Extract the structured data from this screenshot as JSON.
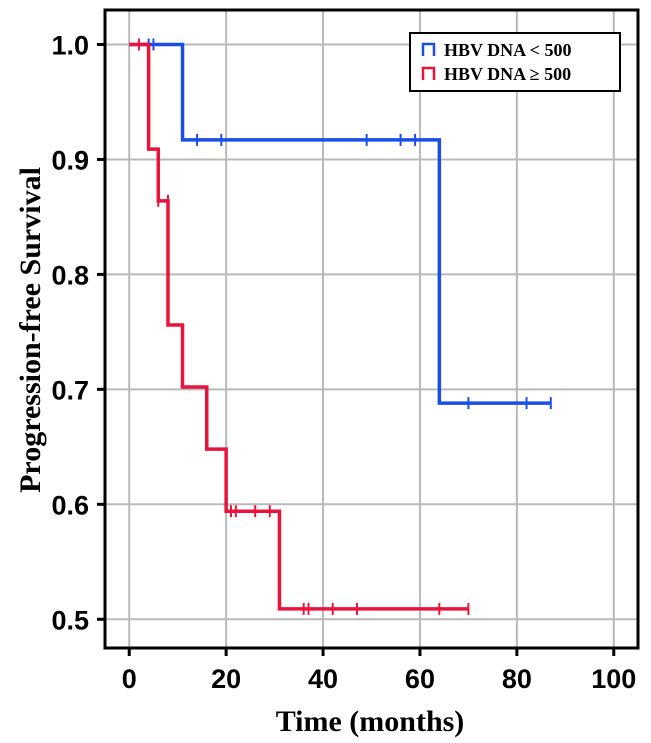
{
  "chart_data": {
    "type": "line",
    "title": "",
    "xlabel": "Time (months)",
    "ylabel": "Progression-free Survival",
    "xlim": [
      -5,
      105
    ],
    "ylim": [
      0.475,
      1.03
    ],
    "x_ticks": [
      0,
      20,
      40,
      60,
      80,
      100
    ],
    "y_ticks": [
      0.5,
      0.6,
      0.7,
      0.8,
      0.9,
      1.0
    ],
    "y_tick_labels": [
      "0.5",
      "0.6",
      "0.7",
      "0.8",
      "0.9",
      "1.0"
    ],
    "grid": true,
    "legend_position": "top-right",
    "step": true,
    "series": [
      {
        "name": "HBV DNA < 500",
        "color": "#1a4fe6",
        "x": [
          0,
          11,
          64,
          87
        ],
        "y": [
          1.0,
          0.917,
          0.688,
          0.688
        ],
        "censored": [
          [
            4,
            1.0
          ],
          [
            5,
            1.0
          ],
          [
            14,
            0.917
          ],
          [
            19,
            0.917
          ],
          [
            49,
            0.917
          ],
          [
            56,
            0.917
          ],
          [
            59,
            0.917
          ],
          [
            70,
            0.688
          ],
          [
            82,
            0.688
          ],
          [
            87,
            0.688
          ]
        ]
      },
      {
        "name": "HBV DNA ≥ 500",
        "color": "#e8143c",
        "x": [
          0,
          4,
          6,
          8,
          11,
          16,
          20,
          31,
          70
        ],
        "y": [
          1.0,
          0.909,
          0.864,
          0.756,
          0.702,
          0.648,
          0.594,
          0.509,
          0.509
        ],
        "censored": [
          [
            2,
            1.0
          ],
          [
            6,
            0.864
          ],
          [
            8,
            0.864
          ],
          [
            21,
            0.594
          ],
          [
            22,
            0.594
          ],
          [
            26,
            0.594
          ],
          [
            29,
            0.594
          ],
          [
            36,
            0.509
          ],
          [
            37,
            0.509
          ],
          [
            42,
            0.509
          ],
          [
            47,
            0.509
          ],
          [
            64,
            0.509
          ],
          [
            70,
            0.509
          ]
        ]
      }
    ]
  }
}
